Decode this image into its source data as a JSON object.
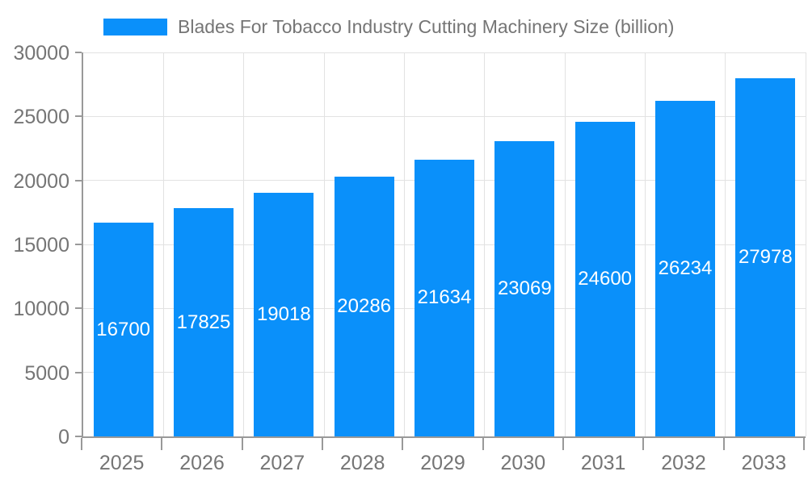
{
  "legend": {
    "label": "Blades For Tobacco Industry Cutting Machinery Size (billion)"
  },
  "chart_data": {
    "type": "bar",
    "title": "Blades For Tobacco Industry Cutting Machinery Size (billion)",
    "categories": [
      "2025",
      "2026",
      "2027",
      "2028",
      "2029",
      "2030",
      "2031",
      "2032",
      "2033"
    ],
    "values": [
      16700,
      17825,
      19018,
      20286,
      21634,
      23069,
      24600,
      26234,
      27978
    ],
    "xlabel": "",
    "ylabel": "",
    "ylim": [
      0,
      30000
    ],
    "yticks": [
      0,
      5000,
      10000,
      15000,
      20000,
      25000,
      30000
    ],
    "grid": true,
    "legend_position": "top",
    "value_labels": "inside-center",
    "colors": {
      "bar": "#0a90fa",
      "value_label": "#ffffff",
      "axis_text": "#757575",
      "grid_line": "#e2e2e2",
      "axis_line": "#999999"
    }
  }
}
